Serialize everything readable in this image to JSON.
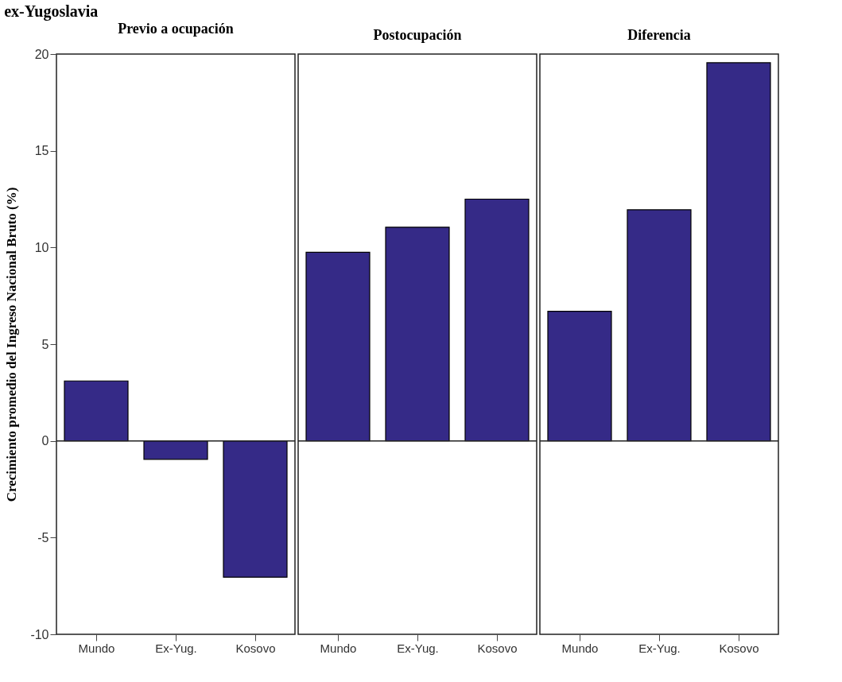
{
  "chart_data": [
    {
      "type": "bar",
      "title": "ex-Yugoslavia",
      "subtitle": "Previo a ocupación",
      "ylabel": "Crecimiento promedio del Ingreso Nacional Bruto (%)",
      "categories": [
        "Mundo",
        "Ex-Yug.",
        "Kosovo"
      ],
      "values": [
        3.1,
        -0.95,
        -7.05
      ],
      "color": "#352a87",
      "ylim": [
        -10,
        20
      ],
      "yticks": [
        -10,
        -5,
        0,
        5,
        10,
        15,
        20
      ],
      "ref_lines": [
        {
          "axis": "y",
          "value": 0
        }
      ]
    },
    {
      "type": "bar",
      "subtitle": "Postocupación",
      "categories": [
        "Mundo",
        "Ex-Yug.",
        "Kosovo"
      ],
      "values": [
        9.75,
        11.05,
        12.5
      ],
      "color": "#352a87",
      "ylim": [
        -10,
        20
      ],
      "yticks": [
        -10,
        -5,
        0,
        5,
        10,
        15,
        20
      ],
      "ref_lines": [
        {
          "axis": "y",
          "value": 0
        }
      ],
      "tick_labels": "x"
    },
    {
      "type": "bar",
      "subtitle": "Diferencia ",
      "categories": [
        "Mundo",
        "Ex-Yug.",
        "Kosovo"
      ],
      "values": [
        6.7,
        11.95,
        19.55
      ],
      "color": "#352a87",
      "ylim": [
        -10,
        20
      ],
      "yticks": [
        -10,
        -5,
        0,
        5,
        10,
        15,
        20
      ],
      "ref_lines": [
        {
          "axis": "y",
          "value": 0
        }
      ],
      "tick_labels": "x"
    }
  ]
}
